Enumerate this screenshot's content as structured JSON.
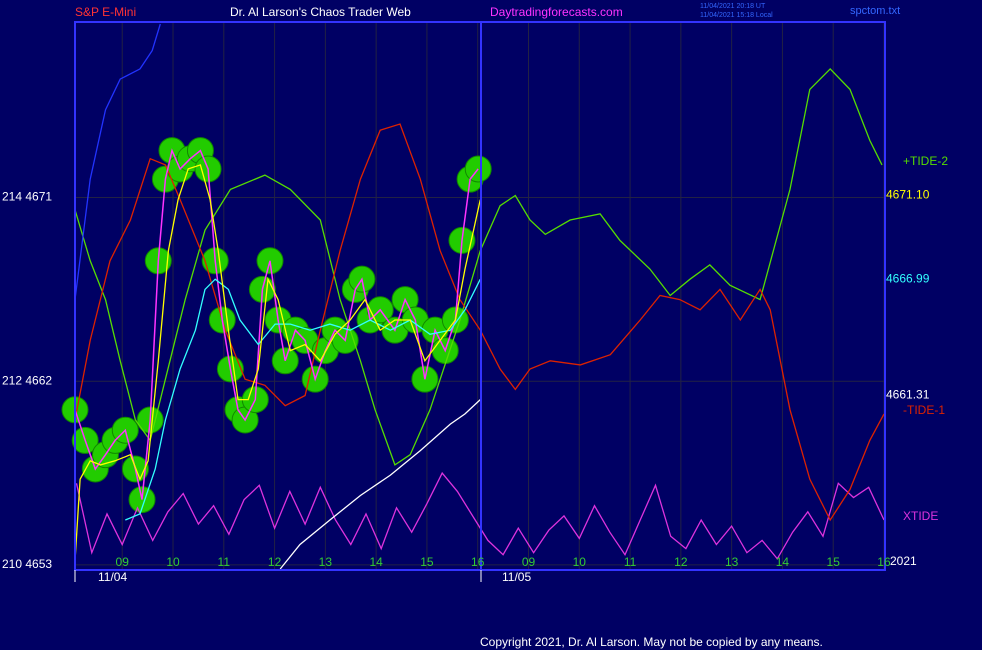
{
  "chart_data": {
    "type": "line",
    "title": "Dr. Al Larson's Chaos Trader Web",
    "instrument": "S&P E-Mini",
    "site": "Daytradingforecasts.com",
    "timestamps": [
      "11/04/2021 20:18 UT",
      "11/04/2021 15:18 Local"
    ],
    "file": "spctom.txt",
    "year": "2021",
    "copyright": "Copyright 2021, Dr. Al Larson. May not be copied by any means.",
    "dates": [
      "11/04",
      "11/05"
    ],
    "xlim": [
      8.07,
      24.02
    ],
    "xticks": [
      {
        "value": 9,
        "label": "09"
      },
      10,
      11,
      12,
      13,
      14,
      15,
      16,
      {
        "value": 17,
        "label": "09"
      },
      {
        "value": 18,
        "label": "10"
      },
      {
        "value": 19,
        "label": "11"
      },
      {
        "value": 20,
        "label": "12"
      },
      {
        "value": 21,
        "label": "13"
      },
      {
        "value": 22,
        "label": "14"
      },
      {
        "value": 23,
        "label": "15"
      },
      {
        "value": 24,
        "label": "16"
      }
    ],
    "ylim": [
      4652.75,
      4679.6
    ],
    "yticks": [
      {
        "value": 4653,
        "label": "210  4653"
      },
      {
        "value": 4662,
        "label": "212  4662"
      },
      {
        "value": 4671,
        "label": "214  4671"
      }
    ],
    "grid": true,
    "series": [
      {
        "name": "XTIDE",
        "color": "#dd33dd",
        "x": [
          8.1,
          8.4,
          8.7,
          9.0,
          9.3,
          9.6,
          9.9,
          10.2,
          10.5,
          10.8,
          11.1,
          11.4,
          11.7,
          12.0,
          12.3,
          12.6,
          12.9,
          13.2,
          13.5,
          13.8,
          14.1,
          14.4,
          14.7,
          15.0,
          15.3,
          15.6,
          15.9,
          16.2,
          16.5,
          16.8,
          17.1,
          17.4,
          17.7,
          18.0,
          18.3,
          18.6,
          18.9,
          19.2,
          19.5,
          19.8,
          20.1,
          20.4,
          20.7,
          21.0,
          21.3,
          21.6,
          21.9,
          22.2,
          22.5,
          22.8,
          23.1,
          23.4,
          23.7,
          24.0
        ],
        "values": [
          4657.0,
          4653.6,
          4655.5,
          4654.0,
          4655.8,
          4654.2,
          4655.6,
          4656.5,
          4655.0,
          4655.9,
          4654.5,
          4656.2,
          4656.9,
          4654.8,
          4656.6,
          4655.0,
          4656.8,
          4655.2,
          4654.0,
          4655.5,
          4653.8,
          4655.8,
          4654.6,
          4656.0,
          4657.5,
          4656.6,
          4655.4,
          4654.2,
          4653.5,
          4654.8,
          4653.6,
          4654.7,
          4655.4,
          4654.3,
          4655.9,
          4654.6,
          4653.5,
          4655.2,
          4656.9,
          4654.4,
          4653.8,
          4655.2,
          4654.0,
          4654.9,
          4653.6,
          4654.2,
          4653.3,
          4654.6,
          4655.6,
          4654.4,
          4657.0,
          4656.3,
          4656.8,
          4655.2
        ]
      },
      {
        "name": "+TIDE-2",
        "color": "#55dd00",
        "x": [
          8.07,
          8.37,
          8.67,
          8.96,
          9.26,
          9.55,
          9.85,
          10.24,
          10.63,
          11.13,
          11.81,
          12.31,
          12.9,
          13.29,
          13.69,
          13.98,
          14.37,
          14.67,
          15.06,
          15.65,
          16.05,
          16.44,
          16.74,
          17.03,
          17.33,
          17.82,
          18.41,
          18.8,
          19.39,
          19.79,
          20.18,
          20.57,
          20.97,
          21.56,
          22.15,
          22.54,
          22.94,
          23.33,
          23.72,
          23.96
        ],
        "values": [
          4670.4,
          4667.9,
          4666.0,
          4663.0,
          4660.1,
          4659.1,
          4662.1,
          4666.0,
          4669.4,
          4671.4,
          4672.1,
          4671.4,
          4669.9,
          4666.0,
          4663.0,
          4660.6,
          4657.9,
          4658.4,
          4660.6,
          4665.0,
          4668.4,
          4670.6,
          4671.1,
          4669.9,
          4669.2,
          4669.9,
          4670.2,
          4668.9,
          4667.5,
          4666.2,
          4667.0,
          4667.7,
          4666.7,
          4666.0,
          4671.4,
          4676.3,
          4677.3,
          4676.3,
          4673.8,
          4672.6
        ]
      },
      {
        "name": "-TIDE-1",
        "color": "#dd2200",
        "x": [
          8.07,
          8.37,
          8.76,
          9.16,
          9.55,
          9.85,
          10.14,
          10.63,
          11.03,
          11.42,
          11.81,
          12.21,
          12.6,
          12.9,
          13.29,
          13.69,
          14.08,
          14.47,
          14.87,
          15.26,
          15.65,
          16.05,
          16.44,
          16.74,
          17.03,
          17.43,
          18.02,
          18.61,
          19.2,
          19.59,
          19.98,
          20.38,
          20.77,
          21.17,
          21.56,
          21.76,
          22.15,
          22.54,
          22.94,
          23.33,
          23.72,
          24.0
        ],
        "values": [
          4660.1,
          4664.0,
          4667.9,
          4669.9,
          4672.9,
          4672.6,
          4670.9,
          4667.9,
          4664.5,
          4662.1,
          4661.8,
          4660.8,
          4661.3,
          4664.5,
          4668.4,
          4671.9,
          4674.3,
          4674.6,
          4671.9,
          4668.4,
          4666.0,
          4664.5,
          4662.6,
          4661.6,
          4662.6,
          4663.0,
          4662.8,
          4663.3,
          4665.0,
          4666.2,
          4666.0,
          4665.5,
          4666.5,
          4665.0,
          4666.5,
          4665.5,
          4660.6,
          4657.2,
          4655.2,
          4656.7,
          4659.1,
          4660.4
        ]
      },
      {
        "color": "#2233ff",
        "x": [
          8.07,
          8.37,
          8.67,
          8.96,
          9.35,
          9.59,
          9.75
        ],
        "values": [
          4666.0,
          4671.9,
          4675.3,
          4676.8,
          4677.3,
          4678.2,
          4679.5
        ]
      },
      {
        "color": "#ffffff",
        "x": [
          12.11,
          12.5,
          13.09,
          13.69,
          14.28,
          14.87,
          15.46,
          15.75,
          16.05
        ],
        "values": [
          4652.8,
          4654.0,
          4655.2,
          4656.4,
          4657.4,
          4658.6,
          4659.9,
          4660.4,
          4661.1
        ],
        "end_label": {
          "value": 4661.31,
          "label": "4661.31"
        }
      },
      {
        "color": "#ff33ff",
        "balls": true,
        "ball_color": "#22cc00",
        "x": [
          8.07,
          8.27,
          8.47,
          8.67,
          8.86,
          9.06,
          9.26,
          9.39,
          9.55,
          9.71,
          9.85,
          9.98,
          10.14,
          10.34,
          10.54,
          10.69,
          10.83,
          10.97,
          11.13,
          11.28,
          11.42,
          11.62,
          11.76,
          11.91,
          12.07,
          12.21,
          12.41,
          12.6,
          12.8,
          13.0,
          13.19,
          13.39,
          13.59,
          13.72,
          13.88,
          14.08,
          14.37,
          14.57,
          14.77,
          14.96,
          15.16,
          15.36,
          15.56,
          15.69,
          15.85,
          16.01
        ],
        "values": [
          4660.6,
          4659.1,
          4657.7,
          4658.4,
          4659.1,
          4659.6,
          4657.7,
          4656.2,
          4660.1,
          4667.9,
          4671.9,
          4673.3,
          4672.4,
          4672.9,
          4673.3,
          4672.4,
          4667.9,
          4665.0,
          4662.6,
          4660.6,
          4660.1,
          4661.1,
          4666.5,
          4667.9,
          4665.0,
          4663.0,
          4664.5,
          4664.0,
          4662.1,
          4663.5,
          4664.5,
          4664.0,
          4666.5,
          4667.0,
          4665.0,
          4665.5,
          4664.5,
          4666.0,
          4665.0,
          4662.1,
          4664.5,
          4663.5,
          4665.0,
          4668.9,
          4671.9,
          4672.4
        ]
      },
      {
        "color": "#33ffff",
        "x": [
          9.06,
          9.35,
          9.65,
          9.85,
          10.14,
          10.44,
          10.63,
          10.83,
          11.09,
          11.32,
          11.68,
          12.01,
          12.31,
          12.7,
          13.09,
          13.49,
          13.88,
          14.28,
          14.67,
          15.06,
          15.46,
          15.75,
          16.05
        ],
        "values": [
          4655.2,
          4655.5,
          4657.7,
          4660.1,
          4662.6,
          4664.5,
          4666.5,
          4667.0,
          4666.5,
          4665.0,
          4663.8,
          4664.8,
          4664.8,
          4664.5,
          4664.8,
          4664.5,
          4665.0,
          4664.5,
          4665.0,
          4664.3,
          4664.5,
          4665.5,
          4667.0
        ],
        "end_label": {
          "value": 4666.99,
          "label": "4666.99"
        }
      },
      {
        "color": "#ffff00",
        "x": [
          8.07,
          8.17,
          8.37,
          8.57,
          8.86,
          9.16,
          9.35,
          9.51,
          9.71,
          9.91,
          10.1,
          10.3,
          10.54,
          10.73,
          10.89,
          11.09,
          11.28,
          11.48,
          11.68,
          11.87,
          12.07,
          12.31,
          12.6,
          12.9,
          13.19,
          13.49,
          13.78,
          14.08,
          14.37,
          14.67,
          14.96,
          15.26,
          15.56,
          15.75,
          16.05
        ],
        "values": [
          4653.2,
          4657.2,
          4658.1,
          4657.9,
          4658.1,
          4658.4,
          4657.2,
          4658.1,
          4663.0,
          4668.4,
          4670.9,
          4672.4,
          4672.6,
          4670.9,
          4668.4,
          4664.5,
          4661.1,
          4661.1,
          4662.6,
          4667.0,
          4666.0,
          4663.5,
          4663.8,
          4663.0,
          4664.3,
          4665.0,
          4666.0,
          4664.5,
          4665.0,
          4665.0,
          4663.0,
          4664.0,
          4665.0,
          4667.5,
          4670.9
        ],
        "end_label": {
          "value": 4671.1,
          "label": "4671.10"
        }
      }
    ]
  }
}
